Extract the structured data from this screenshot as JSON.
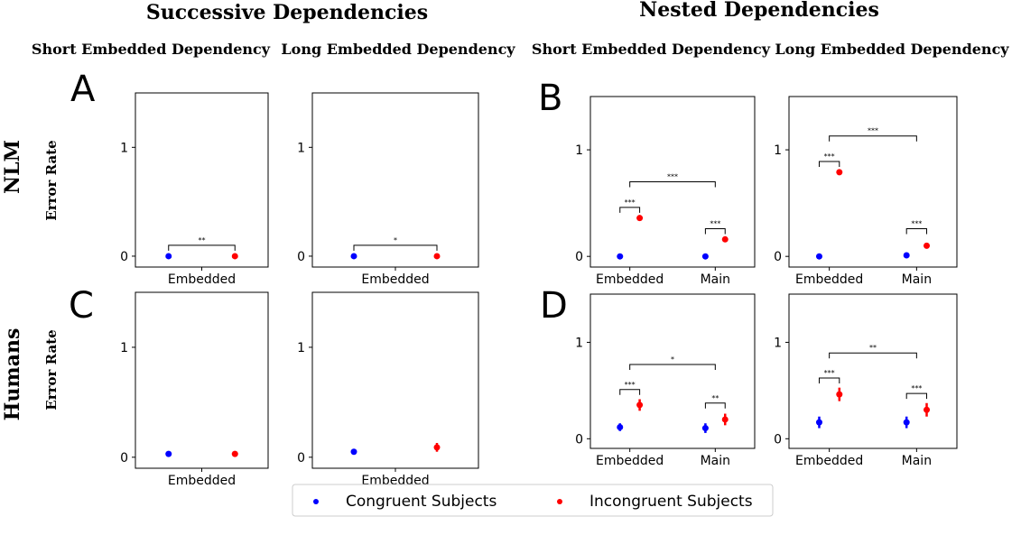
{
  "section_titles": [
    "Successive Dependencies",
    "Nested Dependencies"
  ],
  "column_titles": [
    "Short Embedded Dependency",
    "Long Embedded Dependency",
    "Short Embedded Dependency",
    "Long Embedded Dependency"
  ],
  "row_labels": [
    "NLM",
    "Humans"
  ],
  "ylabel": "Error Rate",
  "panel_letters": [
    "A",
    "B",
    "C",
    "D"
  ],
  "legend": {
    "congruent": {
      "label": "Congruent Subjects",
      "color": "#0000ff"
    },
    "incongruent": {
      "label": "Incongruent Subjects",
      "color": "#ff0000"
    }
  },
  "chart_data": [
    {
      "type": "scatter",
      "row": 0,
      "col": 0,
      "ylim": [
        -0.1,
        1.5
      ],
      "yticks": [
        0,
        1
      ],
      "categories": [
        "Embedded"
      ],
      "series": [
        {
          "name": "Congruent Subjects",
          "values": [
            0.0
          ],
          "err": [
            0
          ]
        },
        {
          "name": "Incongruent Subjects",
          "values": [
            0.0
          ],
          "err": [
            0
          ]
        }
      ],
      "brackets": [
        {
          "type": "within",
          "cat": 0,
          "y": 0.1,
          "label": "**"
        }
      ]
    },
    {
      "type": "scatter",
      "row": 0,
      "col": 1,
      "ylim": [
        -0.1,
        1.5
      ],
      "yticks": [
        0,
        1
      ],
      "categories": [
        "Embedded"
      ],
      "series": [
        {
          "name": "Congruent Subjects",
          "values": [
            0.0
          ],
          "err": [
            0
          ]
        },
        {
          "name": "Incongruent Subjects",
          "values": [
            0.0
          ],
          "err": [
            0
          ]
        }
      ],
      "brackets": [
        {
          "type": "within",
          "cat": 0,
          "y": 0.1,
          "label": "*"
        }
      ]
    },
    {
      "type": "scatter",
      "row": 0,
      "col": 2,
      "ylim": [
        -0.1,
        1.5
      ],
      "yticks": [
        0,
        1
      ],
      "categories": [
        "Embedded",
        "Main"
      ],
      "series": [
        {
          "name": "Congruent Subjects",
          "values": [
            0.0,
            0.0
          ],
          "err": [
            0,
            0
          ]
        },
        {
          "name": "Incongruent Subjects",
          "values": [
            0.36,
            0.16
          ],
          "err": [
            0,
            0
          ]
        }
      ],
      "brackets": [
        {
          "type": "within",
          "cat": 0,
          "y": 0.46,
          "label": "***"
        },
        {
          "type": "within",
          "cat": 1,
          "y": 0.26,
          "label": "***"
        },
        {
          "type": "between",
          "y": 0.7,
          "label": "***"
        }
      ]
    },
    {
      "type": "scatter",
      "row": 0,
      "col": 3,
      "ylim": [
        -0.1,
        1.5
      ],
      "yticks": [
        0,
        1
      ],
      "categories": [
        "Embedded",
        "Main"
      ],
      "series": [
        {
          "name": "Congruent Subjects",
          "values": [
            0.0,
            0.01
          ],
          "err": [
            0,
            0
          ]
        },
        {
          "name": "Incongruent Subjects",
          "values": [
            0.79,
            0.1
          ],
          "err": [
            0,
            0
          ]
        }
      ],
      "brackets": [
        {
          "type": "within",
          "cat": 0,
          "y": 0.89,
          "label": "***"
        },
        {
          "type": "within",
          "cat": 1,
          "y": 0.26,
          "label": "***"
        },
        {
          "type": "between",
          "y": 1.13,
          "label": "***"
        }
      ]
    },
    {
      "type": "scatter",
      "row": 1,
      "col": 0,
      "ylim": [
        -0.1,
        1.5
      ],
      "yticks": [
        0,
        1
      ],
      "categories": [
        "Embedded"
      ],
      "series": [
        {
          "name": "Congruent Subjects",
          "values": [
            0.03
          ],
          "err": [
            0.01
          ]
        },
        {
          "name": "Incongruent Subjects",
          "values": [
            0.03
          ],
          "err": [
            0.01
          ]
        }
      ],
      "brackets": []
    },
    {
      "type": "scatter",
      "row": 1,
      "col": 1,
      "ylim": [
        -0.1,
        1.5
      ],
      "yticks": [
        0,
        1
      ],
      "categories": [
        "Embedded"
      ],
      "series": [
        {
          "name": "Congruent Subjects",
          "values": [
            0.05
          ],
          "err": [
            0.02
          ]
        },
        {
          "name": "Incongruent Subjects",
          "values": [
            0.09
          ],
          "err": [
            0.04
          ]
        }
      ],
      "brackets": []
    },
    {
      "type": "scatter",
      "row": 1,
      "col": 2,
      "ylim": [
        -0.1,
        1.5
      ],
      "yticks": [
        0,
        1
      ],
      "categories": [
        "Embedded",
        "Main"
      ],
      "series": [
        {
          "name": "Congruent Subjects",
          "values": [
            0.12,
            0.11
          ],
          "err": [
            0.04,
            0.05
          ]
        },
        {
          "name": "Incongruent Subjects",
          "values": [
            0.35,
            0.2
          ],
          "err": [
            0.06,
            0.06
          ]
        }
      ],
      "brackets": [
        {
          "type": "within",
          "cat": 0,
          "y": 0.51,
          "label": "***"
        },
        {
          "type": "within",
          "cat": 1,
          "y": 0.37,
          "label": "**"
        },
        {
          "type": "between",
          "y": 0.77,
          "label": "*"
        }
      ]
    },
    {
      "type": "scatter",
      "row": 1,
      "col": 3,
      "ylim": [
        -0.1,
        1.5
      ],
      "yticks": [
        0,
        1
      ],
      "categories": [
        "Embedded",
        "Main"
      ],
      "series": [
        {
          "name": "Congruent Subjects",
          "values": [
            0.17,
            0.17
          ],
          "err": [
            0.06,
            0.06
          ]
        },
        {
          "name": "Incongruent Subjects",
          "values": [
            0.46,
            0.3
          ],
          "err": [
            0.07,
            0.07
          ]
        }
      ],
      "brackets": [
        {
          "type": "within",
          "cat": 0,
          "y": 0.63,
          "label": "***"
        },
        {
          "type": "within",
          "cat": 1,
          "y": 0.47,
          "label": "***"
        },
        {
          "type": "between",
          "y": 0.89,
          "label": "**"
        }
      ]
    }
  ]
}
